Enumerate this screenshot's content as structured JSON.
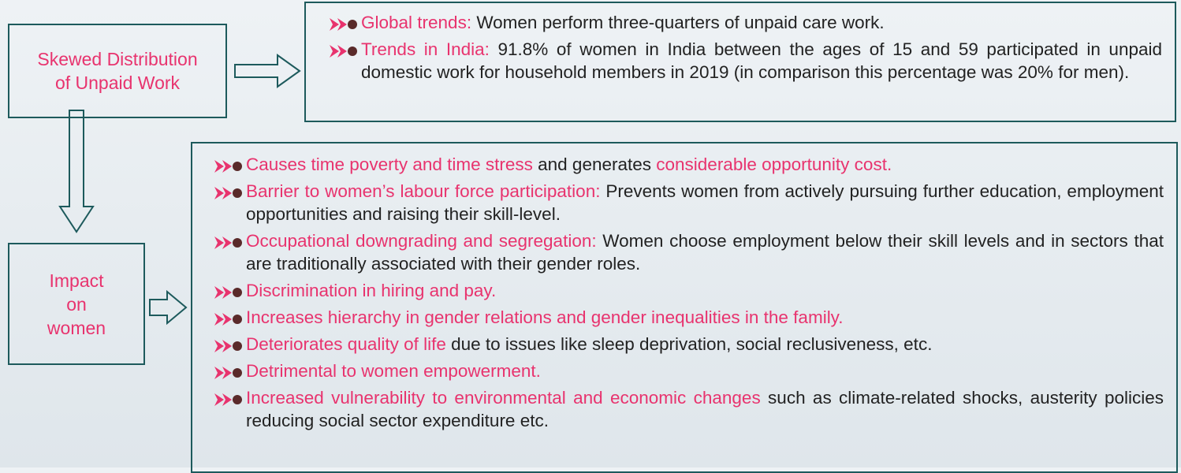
{
  "nodes": [
    {
      "label": [
        "Skewed Distribution",
        "of Unpaid Work"
      ]
    },
    {
      "label": [
        "Impact",
        "on",
        "women"
      ]
    }
  ],
  "panels": [
    {
      "items": [
        [
          "Global trends:",
          " Women perform three-quarters of unpaid care work."
        ],
        [
          "Trends in India:",
          " 91.8% of women in India between the ages of 15 and 59 participated in unpaid domestic work for household members in 2019 (in comparison this percentage was 20% for men)."
        ]
      ]
    },
    {
      "items": [
        [
          "Causes time poverty and time stress",
          " and generates ",
          "considerable opportunity cost."
        ],
        [
          "Barrier to women’s labour force participation:",
          " Prevents women from actively pursuing further education, employment opportunities and raising their skill-level."
        ],
        [
          "Occupational downgrading and segregation:",
          " Women choose employment below their skill levels and in sectors that are traditionally associated with their gender roles."
        ],
        [
          "Discrimination in hiring and pay."
        ],
        [
          "Increases hierarchy in gender relations and gender inequalities in the family."
        ],
        [
          "Deteriorates quality of life",
          " due to issues like sleep deprivation, social reclusiveness, etc."
        ],
        [
          "Detrimental to women empowerment."
        ],
        [
          "Increased vulnerability to environmental and economic changes",
          " such as climate-related shocks, austerity policies reducing social sector expenditure etc."
        ]
      ]
    }
  ]
}
